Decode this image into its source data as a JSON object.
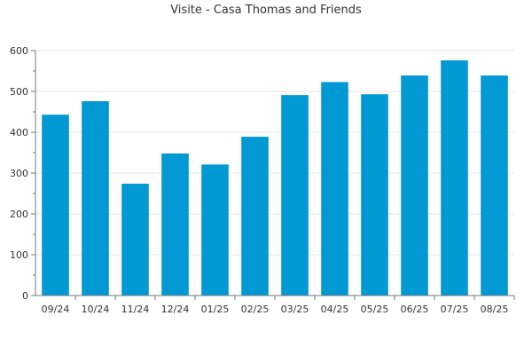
{
  "chart_data": {
    "type": "bar",
    "title": "Visite - Casa Thomas and Friends",
    "categories": [
      "09/24",
      "10/24",
      "11/24",
      "12/24",
      "01/25",
      "02/25",
      "03/25",
      "04/25",
      "05/25",
      "06/25",
      "07/25",
      "08/25"
    ],
    "values": [
      443,
      476,
      274,
      348,
      321,
      389,
      491,
      523,
      493,
      539,
      576,
      539
    ],
    "xlabel": "",
    "ylabel": "",
    "ylim": [
      0,
      600
    ],
    "yticks": [
      0,
      100,
      200,
      300,
      400,
      500,
      600
    ],
    "grid": true,
    "bar_color": "#0099d4",
    "grid_color": "#e5e5e5",
    "axis_color": "#777777"
  }
}
